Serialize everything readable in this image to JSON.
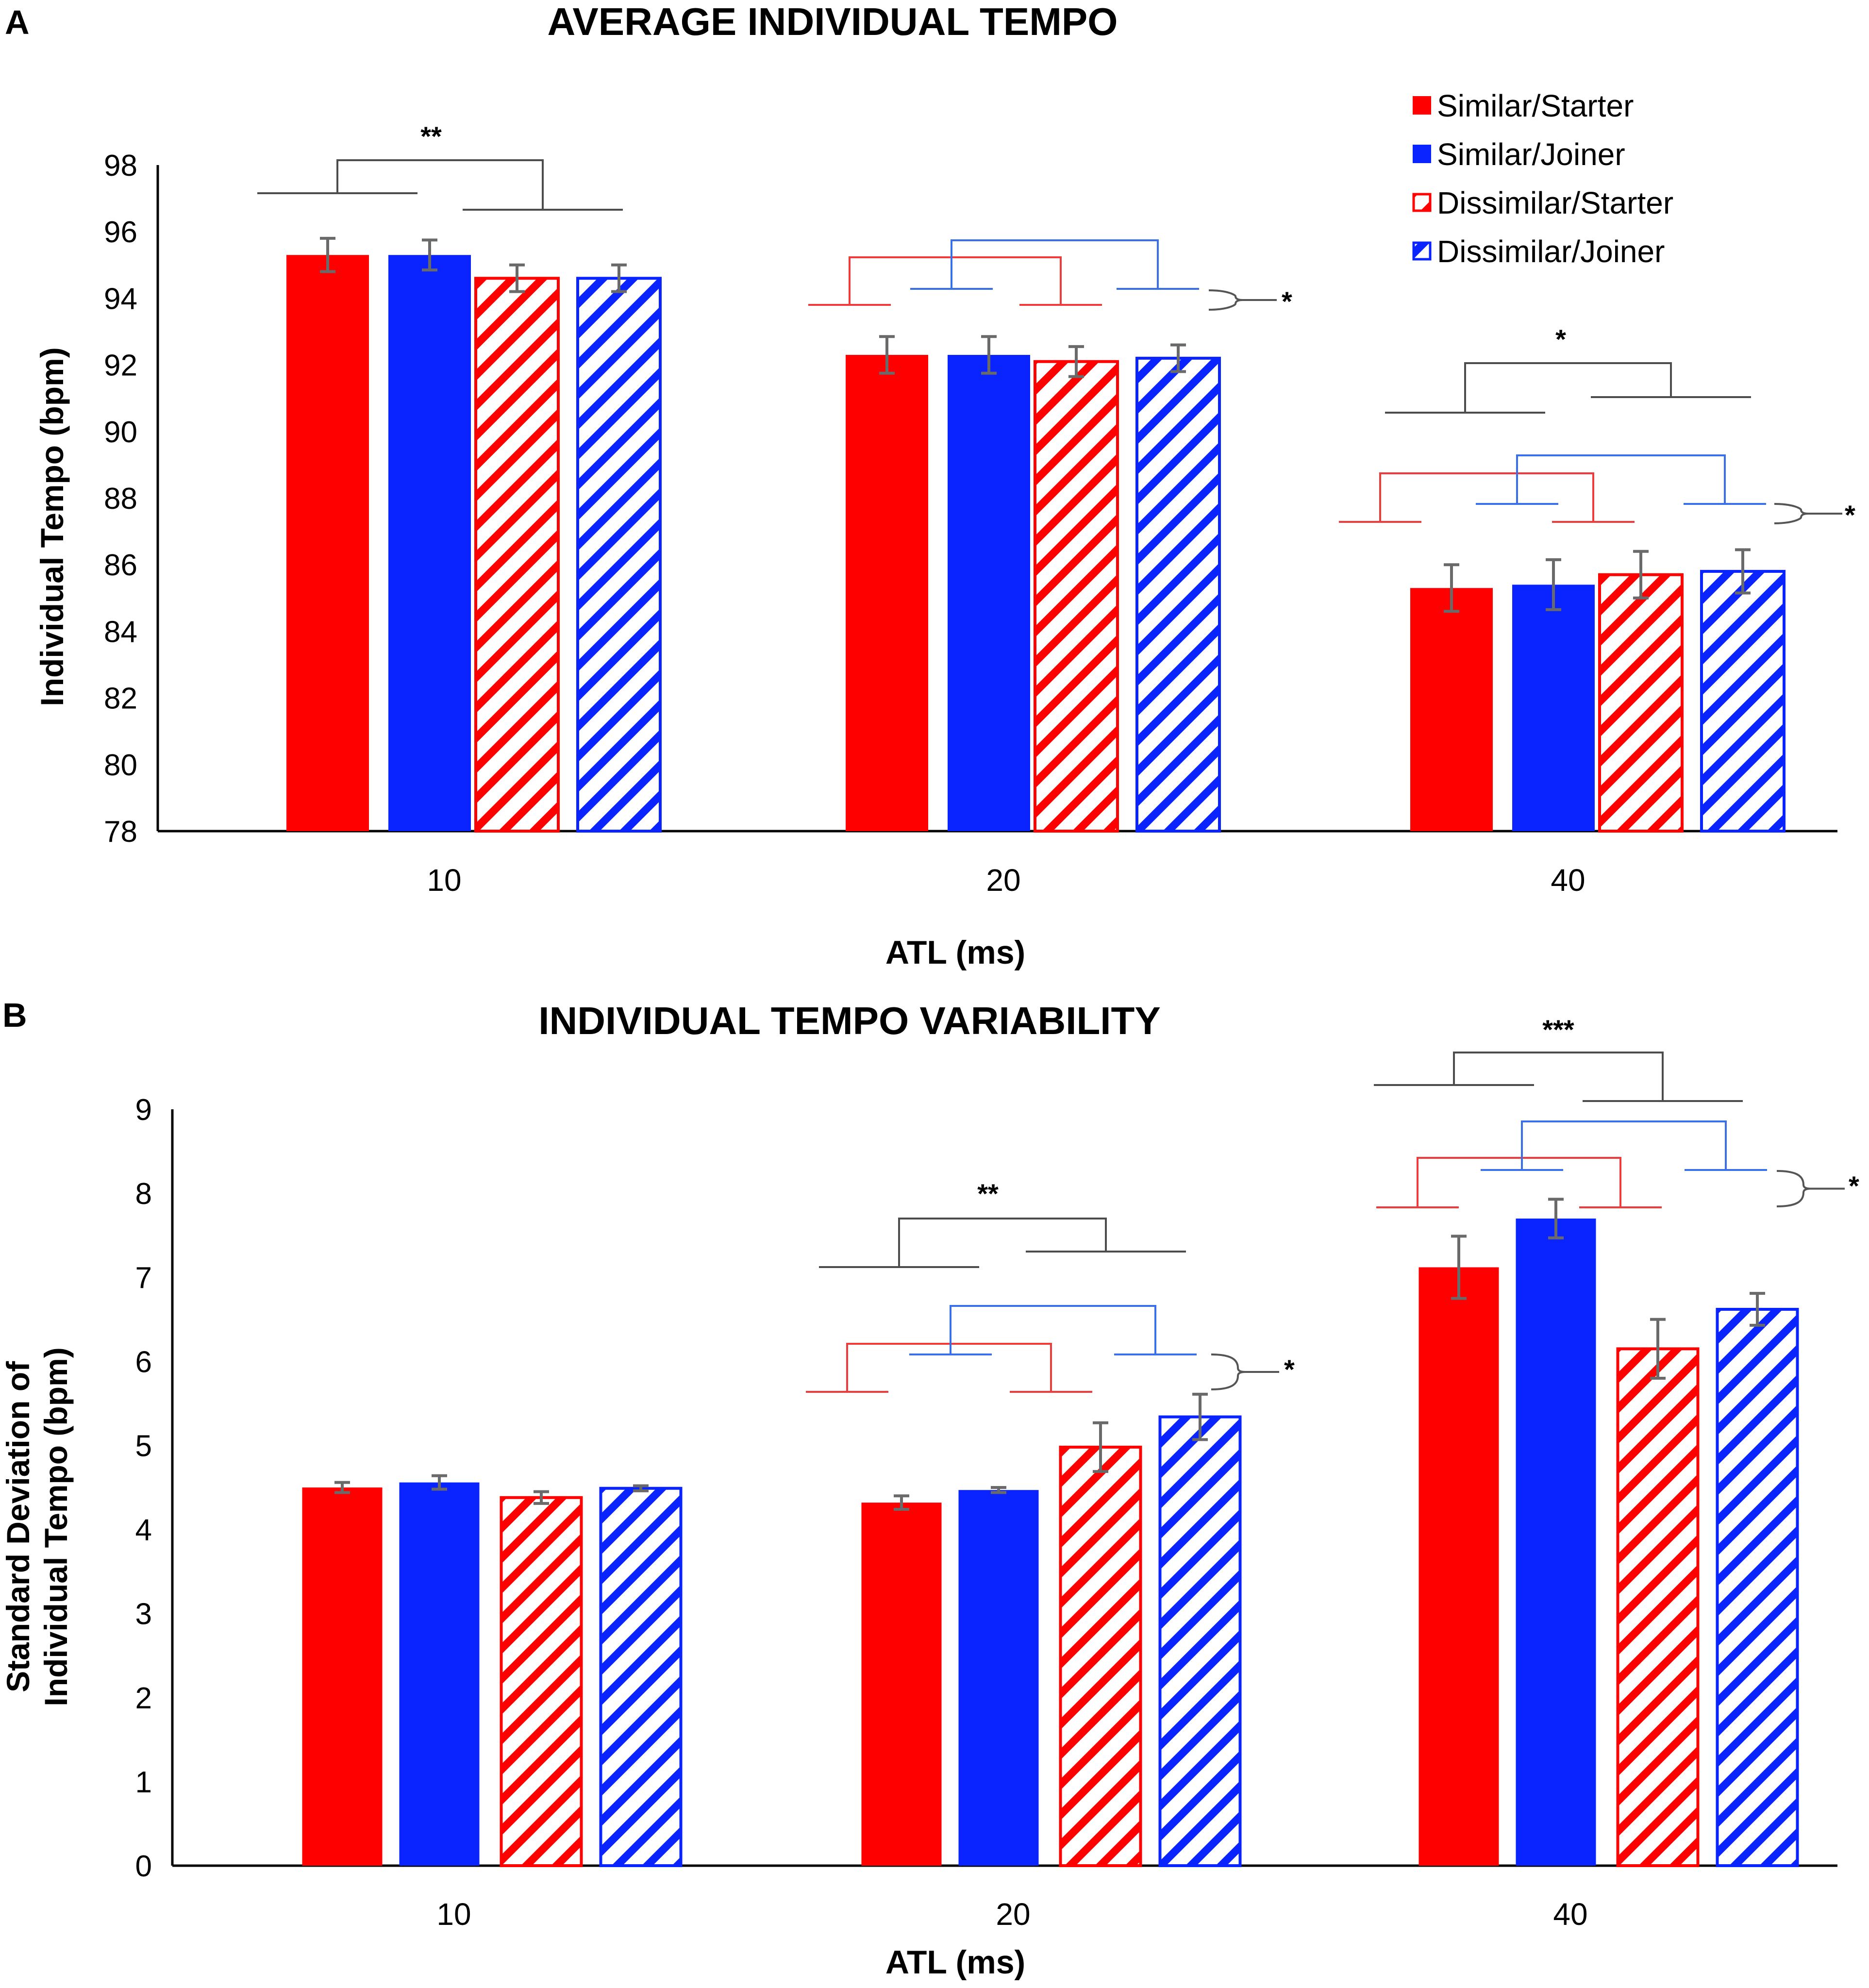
{
  "colors": {
    "red": "#ff0000",
    "blue": "#0a24ff",
    "red_line": "#ee3b3b",
    "blue_line": "#3a6fe8",
    "gray": "#4d4d4d",
    "errbar": "#6a6a6a"
  },
  "legend": [
    {
      "label": "Similar/Starter",
      "color": "#ff0000",
      "hatched": false
    },
    {
      "label": "Similar/Joiner",
      "color": "#0a24ff",
      "hatched": false
    },
    {
      "label": "Dissimilar/Starter",
      "color": "#ff0000",
      "hatched": true
    },
    {
      "label": "Dissimilar/Joiner",
      "color": "#0a24ff",
      "hatched": true
    }
  ],
  "chart_data": [
    {
      "panel": "A",
      "type": "bar",
      "title": "AVERAGE INDIVIDUAL TEMPO",
      "xlabel": "ATL (ms)",
      "ylabel": "Individual Tempo (bpm)",
      "ylim": [
        78,
        98
      ],
      "yticks": [
        "78",
        "80",
        "82",
        "84",
        "86",
        "88",
        "90",
        "92",
        "94",
        "96",
        "98"
      ],
      "categories": [
        "10",
        "20",
        "40"
      ],
      "series": [
        {
          "name": "Similar/Starter",
          "values": [
            95.3,
            92.3,
            85.3
          ],
          "errors": [
            0.5,
            0.55,
            0.7
          ]
        },
        {
          "name": "Similar/Joiner",
          "values": [
            95.3,
            92.3,
            85.4
          ],
          "errors": [
            0.45,
            0.55,
            0.75
          ]
        },
        {
          "name": "Dissimilar/Starter",
          "values": [
            94.6,
            92.1,
            85.7
          ],
          "errors": [
            0.4,
            0.45,
            0.7
          ]
        },
        {
          "name": "Dissimilar/Joiner",
          "values": [
            94.6,
            92.2,
            85.8
          ],
          "errors": [
            0.4,
            0.4,
            0.65
          ]
        }
      ],
      "significance": [
        "**",
        "*",
        "*",
        "*"
      ]
    },
    {
      "panel": "B",
      "type": "bar",
      "title": "INDIVIDUAL TEMPO VARIABILITY",
      "xlabel": "ATL (ms)",
      "ylabel_lines": [
        "Standard Deviation of",
        "Individual Tempo (bpm)"
      ],
      "ylim": [
        0,
        9
      ],
      "yticks": [
        "0",
        "1",
        "2",
        "3",
        "4",
        "5",
        "6",
        "7",
        "8",
        "9"
      ],
      "categories": [
        "10",
        "20",
        "40"
      ],
      "series": [
        {
          "name": "Similar/Starter",
          "values": [
            4.5,
            4.32,
            7.12
          ],
          "errors": [
            0.06,
            0.08,
            0.37
          ]
        },
        {
          "name": "Similar/Joiner",
          "values": [
            4.56,
            4.47,
            7.7
          ],
          "errors": [
            0.08,
            0.03,
            0.23
          ]
        },
        {
          "name": "Dissimilar/Starter",
          "values": [
            4.38,
            4.98,
            6.15
          ],
          "errors": [
            0.07,
            0.29,
            0.35
          ]
        },
        {
          "name": "Dissimilar/Joiner",
          "values": [
            4.49,
            5.34,
            6.62
          ],
          "errors": [
            0.03,
            0.27,
            0.19
          ]
        }
      ],
      "significance": [
        "**",
        "*",
        "***",
        "*"
      ]
    }
  ]
}
